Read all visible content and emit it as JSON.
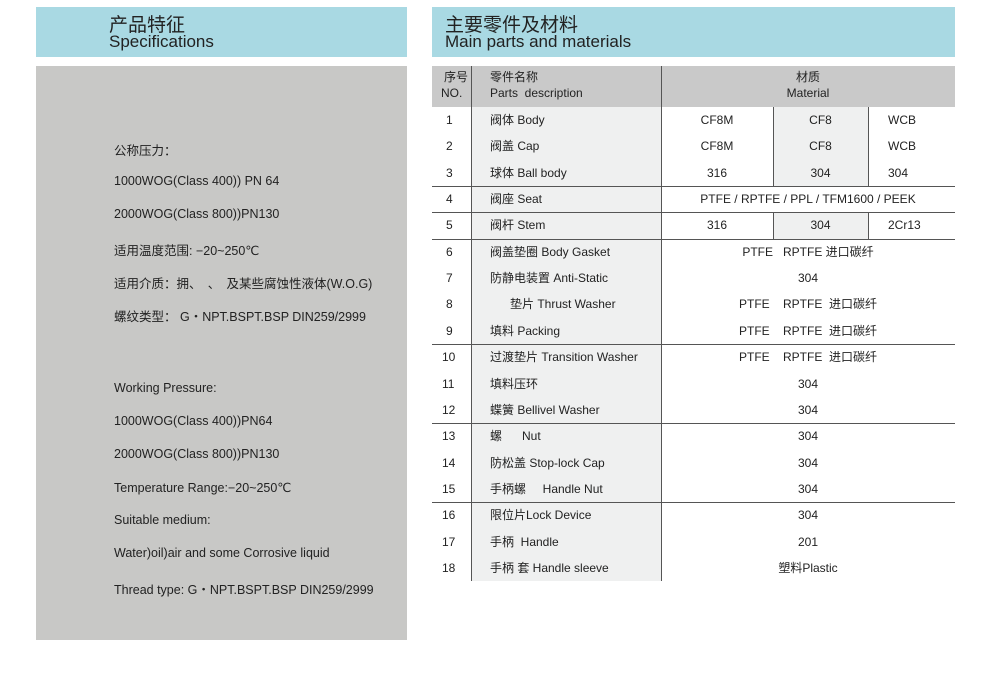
{
  "left": {
    "title_zh": "产品特征",
    "title_en": "Specifications",
    "lines": [
      "公称压力：",
      "1000WOG(Class 400)) PN 64",
      "2000WOG(Class 800))PN130",
      "适用温度范围: −20~250℃",
      "适用介质：拥、　、　及某些腐蚀性液体(W.O.G)",
      "螺纹类型： G・NPT.BSPT.BSP DIN259/2999",
      "Working Pressure:",
      "1000WOG(Class 400))PN64",
      "2000WOG(Class 800))PN130",
      "Temperature Range:−20~250℃",
      "Suitable medium:",
      "Water)oil)air and some Corrosive liquid",
      "Thread type: G・NPT.BSPT.BSP DIN259/2999"
    ]
  },
  "right": {
    "title_zh": "主要零件及材料",
    "title_en": "Main parts and materials"
  },
  "table": {
    "headers": {
      "no_zh": "序号",
      "no_en": "NO.",
      "desc_zh": "零件名称",
      "desc_en": "Parts  description",
      "mat_zh": "材质",
      "mat_en": "Material"
    },
    "rows": [
      {
        "no": "1",
        "desc": "阀体 Body",
        "mat": [
          "CF8M",
          "CF8",
          "WCB"
        ]
      },
      {
        "no": "2",
        "desc": "阀盖 Cap",
        "mat": [
          "CF8M",
          "CF8",
          "WCB"
        ]
      },
      {
        "no": "3",
        "desc": "球体 Ball body",
        "mat": [
          "316",
          "304",
          "304"
        ]
      },
      {
        "no": "4",
        "desc": "阀座 Seat",
        "mat": [
          "PTFE / RPTFE / PPL / TFM1600 / PEEK"
        ]
      },
      {
        "no": "5",
        "desc": "阀杆 Stem",
        "mat": [
          "316",
          "304",
          "2Cr13"
        ]
      },
      {
        "no": "6",
        "desc": "阀盖垫圈 Body Gasket",
        "mat": [
          "PTFE   RPTFE 进口碳纤"
        ]
      },
      {
        "no": "7",
        "desc": "防静电装置 Anti-Static",
        "mat": [
          "304"
        ]
      },
      {
        "no": "8",
        "desc": "      垫片 Thrust Washer",
        "mat": [
          "PTFE    RPTFE  进口碳纤"
        ]
      },
      {
        "no": "9",
        "desc": "填料 Packing",
        "mat": [
          "PTFE    RPTFE  进口碳纤"
        ]
      },
      {
        "no": "10",
        "desc": "过渡垫片 Transition Washer",
        "mat": [
          "PTFE    RPTFE  进口碳纤"
        ]
      },
      {
        "no": "11",
        "desc": "填料压环",
        "mat": [
          "304"
        ]
      },
      {
        "no": "12",
        "desc": "蝶簧 Bellivel Washer",
        "mat": [
          "304"
        ]
      },
      {
        "no": "13",
        "desc": "螺      Nut",
        "mat": [
          "304"
        ]
      },
      {
        "no": "14",
        "desc": "防松盖 Stop-lock Cap",
        "mat": [
          "304"
        ]
      },
      {
        "no": "15",
        "desc": "手柄螺     Handle Nut",
        "mat": [
          "304"
        ]
      },
      {
        "no": "16",
        "desc": "限位片Lock Device",
        "mat": [
          "304"
        ]
      },
      {
        "no": "17",
        "desc": "手柄  Handle",
        "mat": [
          "201"
        ]
      },
      {
        "no": "18",
        "desc": "手柄 套 Handle sleeve",
        "mat": [
          "塑料Plastic"
        ]
      }
    ]
  }
}
